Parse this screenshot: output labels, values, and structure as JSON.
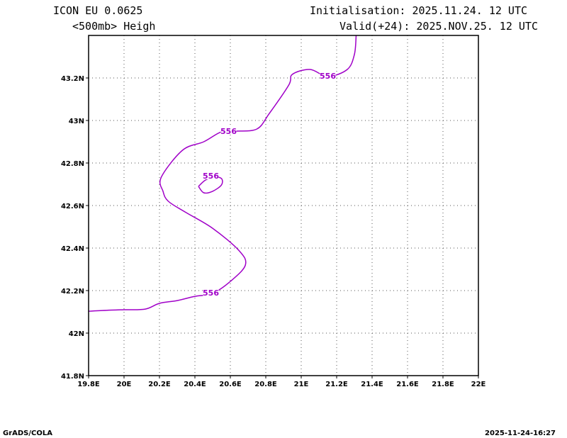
{
  "header": {
    "left_line1": "ICON EU  0.0625",
    "left_line2": "<500mb> Heigh",
    "right_line1": "Initialisation: 2025.11.24. 12 UTC",
    "right_line2": "Valid(+24): 2025.NOV.25. 12 UTC"
  },
  "footer": {
    "left": "GrADS/COLA",
    "right": "2025-11-24-16:27"
  },
  "colors": {
    "contour": "#a000c8",
    "grid": "#555555",
    "frame": "#000000"
  },
  "chart_data": {
    "type": "contour",
    "xlim": [
      19.8,
      22.0
    ],
    "ylim": [
      41.8,
      43.4
    ],
    "x_ticks": [
      19.8,
      20.0,
      20.2,
      20.4,
      20.6,
      20.8,
      21.0,
      21.2,
      21.4,
      21.6,
      21.8,
      22.0
    ],
    "x_tick_labels": [
      "19.8E",
      "20E",
      "20.2E",
      "20.4E",
      "20.6E",
      "20.8E",
      "21E",
      "21.2E",
      "21.4E",
      "21.6E",
      "21.8E",
      "22E"
    ],
    "y_ticks": [
      41.8,
      42.0,
      42.2,
      42.4,
      42.6,
      42.8,
      43.0,
      43.2
    ],
    "y_tick_labels": [
      "41.8N",
      "42N",
      "42.2N",
      "42.4N",
      "42.6N",
      "42.8N",
      "43N",
      "43.2N"
    ],
    "grid": true,
    "contour_level": "556",
    "contours": [
      {
        "level": "556",
        "points": [
          [
            19.8,
            42.103
          ],
          [
            19.9,
            42.107
          ],
          [
            20.0,
            42.11
          ],
          [
            20.12,
            42.113
          ],
          [
            20.2,
            42.14
          ],
          [
            20.3,
            42.153
          ],
          [
            20.4,
            42.173
          ],
          [
            20.5,
            42.187
          ],
          [
            20.6,
            42.243
          ],
          [
            20.685,
            42.32
          ],
          [
            20.65,
            42.387
          ],
          [
            20.5,
            42.493
          ],
          [
            20.35,
            42.567
          ],
          [
            20.25,
            42.62
          ],
          [
            20.22,
            42.667
          ],
          [
            20.21,
            42.733
          ],
          [
            20.33,
            42.86
          ],
          [
            20.45,
            42.9
          ],
          [
            20.55,
            42.947
          ],
          [
            20.63,
            42.95
          ],
          [
            20.75,
            42.96
          ],
          [
            20.82,
            43.033
          ],
          [
            20.93,
            43.167
          ],
          [
            20.95,
            43.217
          ],
          [
            21.05,
            43.24
          ],
          [
            21.15,
            43.207
          ],
          [
            21.26,
            43.24
          ],
          [
            21.3,
            43.31
          ],
          [
            21.31,
            43.4
          ]
        ],
        "labels": [
          [
            21.15,
            43.21
          ],
          [
            20.59,
            42.95
          ],
          [
            20.49,
            42.19
          ]
        ]
      },
      {
        "level": "556",
        "closed": true,
        "points": [
          [
            20.42,
            42.69
          ],
          [
            20.46,
            42.72
          ],
          [
            20.51,
            42.733
          ],
          [
            20.55,
            42.727
          ],
          [
            20.55,
            42.697
          ],
          [
            20.5,
            42.667
          ],
          [
            20.45,
            42.66
          ],
          [
            20.42,
            42.69
          ]
        ],
        "labels": [
          [
            20.49,
            42.74
          ]
        ]
      }
    ]
  }
}
